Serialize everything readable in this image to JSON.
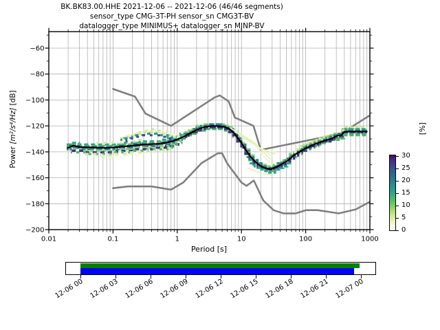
{
  "title": {
    "line1": "BK.BK83.00.HHE   2021-12-06 -- 2021-12-06  (46/46 segments)",
    "line2": "sensor_type CMG-3T-PH sensor_sn CMG3T-BV",
    "line3": "datalogger_type MINIMUS+ datalogger_sn MINP-BV"
  },
  "axis": {
    "xlabel": "Period [s]",
    "ylabel_prefix": "Power ",
    "ylabel_units": "[m²/s⁴/Hz]",
    "ylabel_suffix": " [dB]"
  },
  "colorbar": {
    "label": "[%]",
    "ticks": [
      0,
      5,
      10,
      15,
      20,
      25,
      30
    ],
    "colormap": "white-to-viridis reversed (0%=white, 30%=dark purple)"
  },
  "timeline": {
    "labels": [
      "12-06 00",
      "12-06 03",
      "12-06 06",
      "12-06 09",
      "12-06 12",
      "12-06 15",
      "12-06 18",
      "12-06 21",
      "12-07 00"
    ],
    "green_bar_color": "#008000",
    "blue_bar_color": "#0000ff"
  },
  "chart_data": {
    "type": "heatmap",
    "description": "PPSD probabilistic power spectral density, probability [%] vs period and power",
    "xscale": "log",
    "xlim": [
      0.01,
      1000
    ],
    "ylim": [
      -200,
      -47.3
    ],
    "xticks": [
      0.01,
      0.1,
      1,
      10,
      100,
      1000
    ],
    "yticks": [
      -200,
      -180,
      -160,
      -140,
      -120,
      -100,
      -80,
      -60
    ],
    "grid": true,
    "grid_color": "#b0b0b0",
    "percent_max": 30,
    "noise_models": {
      "color": "#7f7f7f",
      "nhnm": [
        [
          0.1,
          -91.5
        ],
        [
          0.22,
          -97.4
        ],
        [
          0.32,
          -110.5
        ],
        [
          0.8,
          -120
        ],
        [
          3.8,
          -98.1
        ],
        [
          4.6,
          -96.5
        ],
        [
          6.3,
          -101
        ],
        [
          7.9,
          -113.5
        ],
        [
          15.4,
          -120
        ],
        [
          20,
          -138.5
        ],
        [
          354.8,
          -126
        ],
        [
          1000,
          -111.8
        ]
      ],
      "nlnm": [
        [
          0.1,
          -168
        ],
        [
          0.17,
          -166.7
        ],
        [
          0.4,
          -166.7
        ],
        [
          0.8,
          -169.2
        ],
        [
          1.24,
          -163.7
        ],
        [
          2.4,
          -148.6
        ],
        [
          4.3,
          -141.1
        ],
        [
          5,
          -141.1
        ],
        [
          6,
          -149
        ],
        [
          10,
          -163.7
        ],
        [
          12,
          -166.2
        ],
        [
          15.6,
          -162.1
        ],
        [
          21.9,
          -177.5
        ],
        [
          31.6,
          -185
        ],
        [
          45,
          -187.5
        ],
        [
          70,
          -187.5
        ],
        [
          101,
          -185
        ],
        [
          154,
          -185
        ],
        [
          328,
          -187.5
        ],
        [
          600,
          -184.4
        ],
        [
          1000,
          -178.5
        ]
      ]
    },
    "mode_line": {
      "color": "#000000",
      "points": [
        [
          0.02,
          -137
        ],
        [
          0.024,
          -135.2
        ],
        [
          0.03,
          -136.3
        ],
        [
          0.05,
          -136.6
        ],
        [
          0.08,
          -137
        ],
        [
          0.12,
          -136.3
        ],
        [
          0.2,
          -135.3
        ],
        [
          0.3,
          -134.3
        ],
        [
          0.5,
          -133.8
        ],
        [
          0.7,
          -132.8
        ],
        [
          0.9,
          -131.3
        ],
        [
          1.2,
          -128.8
        ],
        [
          1.6,
          -125.6
        ],
        [
          2.1,
          -122.5
        ],
        [
          2.7,
          -120.7
        ],
        [
          3.5,
          -120
        ],
        [
          4.6,
          -120.2
        ],
        [
          5.5,
          -120.8
        ],
        [
          6.5,
          -122.3
        ],
        [
          7.5,
          -125
        ],
        [
          8.5,
          -128.3
        ],
        [
          10,
          -133
        ],
        [
          12,
          -139.5
        ],
        [
          14,
          -144
        ],
        [
          17,
          -148.3
        ],
        [
          20,
          -151
        ],
        [
          24,
          -152.7
        ],
        [
          29,
          -153.3
        ],
        [
          35,
          -151.7
        ],
        [
          43,
          -149.3
        ],
        [
          52,
          -147
        ],
        [
          65,
          -142.8
        ],
        [
          80,
          -140
        ],
        [
          100,
          -137.3
        ],
        [
          125,
          -135
        ],
        [
          155,
          -133.2
        ],
        [
          200,
          -131.2
        ],
        [
          250,
          -130
        ],
        [
          310,
          -127.5
        ],
        [
          360,
          -127.2
        ],
        [
          400,
          -124.5
        ],
        [
          500,
          -124.3
        ],
        [
          650,
          -124.2
        ],
        [
          900,
          -124.3
        ]
      ]
    },
    "upper_stream": [
      [
        0.13,
        -130.5
      ],
      [
        0.2,
        -127.5
      ],
      [
        0.3,
        -125.5
      ],
      [
        0.45,
        -124.8
      ],
      [
        0.6,
        -125.8
      ],
      [
        0.8,
        -127.8
      ],
      [
        1.0,
        -129.3
      ],
      [
        1.3,
        -128.8
      ]
    ],
    "cloud_layers": [
      {
        "ref": "mode",
        "off": 2.2,
        "p": [
          0.019,
          1.3
        ],
        "color": "#2e9e8a",
        "w": 3.4,
        "dash": "6 4",
        "ph": 0
      },
      {
        "ref": "mode",
        "off": 1.2,
        "p": [
          0.019,
          1.35
        ],
        "color": "#4fb36b",
        "w": 3.4,
        "dash": "8 3",
        "ph": 3
      },
      {
        "ref": "mode",
        "off": 0,
        "p": [
          0.019,
          1.4
        ],
        "color": "#3c4d8a",
        "w": 3.4,
        "dash": "7 4",
        "ph": 5
      },
      {
        "ref": "mode",
        "off": -1.2,
        "p": [
          0.019,
          1.35
        ],
        "color": "#2b818e",
        "w": 3.4,
        "dash": "9 3",
        "ph": 1
      },
      {
        "ref": "mode",
        "off": -2.3,
        "p": [
          0.02,
          1.3
        ],
        "color": "#8fd06e",
        "w": 3.4,
        "dash": "5 4",
        "ph": 2
      },
      {
        "ref": "mode",
        "off": -3.4,
        "p": [
          0.02,
          1.2
        ],
        "color": "#46327e",
        "w": 3.4,
        "dash": "6 5",
        "ph": 6
      },
      {
        "ref": "mode",
        "off": -4.5,
        "p": [
          0.022,
          1.1
        ],
        "color": "#4fb36b",
        "w": 3.4,
        "dash": "4 6",
        "ph": 2
      },
      {
        "ref": "mode",
        "off": -5.6,
        "p": [
          0.03,
          0.9
        ],
        "color": "#cfe8a0",
        "w": 3.4,
        "dash": "5 7",
        "ph": 4
      },
      {
        "ref": "mode",
        "off": -6.6,
        "p": [
          0.05,
          0.6
        ],
        "color": "#eef4cf",
        "w": 3,
        "dash": "4 8",
        "ph": 1
      },
      {
        "ref": "mode",
        "off": -7.5,
        "p": [
          0.06,
          0.4
        ],
        "color": "#eef4cf",
        "w": 2.8,
        "dash": "3 9",
        "ph": 5
      },
      {
        "ref": "mode",
        "off": 3.2,
        "p": [
          0.05,
          0.3
        ],
        "color": "#cfe8a0",
        "w": 3,
        "dash": "4 7",
        "ph": 7
      },
      {
        "ref": "upper",
        "off": 0,
        "p": [
          0.13,
          1.3
        ],
        "color": "#cfe8a0",
        "w": 3.4,
        "dash": "7 3",
        "ph": 0
      },
      {
        "ref": "upper",
        "off": 1.1,
        "p": [
          0.15,
          1.1
        ],
        "color": "#eef4cf",
        "w": 3,
        "dash": "5 6",
        "ph": 4
      },
      {
        "ref": "upper",
        "off": -1.1,
        "p": [
          0.13,
          1.25
        ],
        "color": "#2e9e8a",
        "w": 3.2,
        "dash": "5 5",
        "ph": 2
      },
      {
        "ref": "upper",
        "off": -2.2,
        "p": [
          0.14,
          1.2
        ],
        "color": "#3c4d8a",
        "w": 3,
        "dash": "4 7",
        "ph": 6
      },
      {
        "ref": "upper",
        "off": 2.2,
        "p": [
          0.2,
          0.8
        ],
        "color": "#cfe8a0",
        "w": 3,
        "dash": "3 9",
        "ph": 3
      },
      {
        "ref": "mode",
        "off": 1.8,
        "p": [
          1.3,
          900
        ],
        "color": "#8fd06e",
        "w": 3.2,
        "dash": "6 2",
        "ph": 0
      },
      {
        "ref": "mode",
        "off": -1.8,
        "p": [
          1.3,
          900
        ],
        "color": "#4fb36b",
        "w": 3.2,
        "dash": "7 2",
        "ph": 3
      },
      {
        "ref": "mode",
        "off": 0.9,
        "p": [
          1.3,
          900
        ],
        "color": "#2b818e",
        "w": 3,
        "dash": "8 2",
        "ph": 1
      },
      {
        "ref": "mode",
        "off": -0.9,
        "p": [
          1.3,
          900
        ],
        "color": "#46327e",
        "w": 3,
        "dash": "9 2",
        "ph": 5
      },
      {
        "ref": "mode",
        "off": -2.8,
        "p": [
          12,
          60
        ],
        "color": "#2e9e8a",
        "w": 3.2,
        "dash": "5 3",
        "ph": 2
      },
      {
        "ref": "mode",
        "off": 2.8,
        "p": [
          60,
          200
        ],
        "color": "#cfe8a0",
        "w": 3,
        "dash": "4 4",
        "ph": 4
      },
      {
        "ref": "mode",
        "off": -2.8,
        "p": [
          300,
          900
        ],
        "color": "#4fb36b",
        "w": 3.2,
        "dash": "6 3",
        "ph": 1
      },
      {
        "ref": "mode",
        "off": 2.8,
        "p": [
          350,
          900
        ],
        "color": "#cfe8a0",
        "w": 3.2,
        "dash": "5 3",
        "ph": 6
      },
      {
        "ref": "mode",
        "off": 2,
        "p": [
          400,
          900
        ],
        "color": "#2e9e8a",
        "w": 3,
        "dash": "6 3",
        "ph": 2
      }
    ],
    "streaks": [
      {
        "color": "#eef4cf",
        "w": 1.8,
        "points": [
          [
            6.6,
            -121.5
          ],
          [
            14,
            -131
          ],
          [
            25,
            -146
          ],
          [
            30,
            -149.5
          ]
        ]
      },
      {
        "color": "#e2efb9",
        "w": 1.8,
        "points": [
          [
            7.2,
            -122.5
          ],
          [
            16,
            -133
          ],
          [
            28,
            -145.5
          ]
        ]
      },
      {
        "color": "#eef4cf",
        "w": 1.8,
        "points": [
          [
            8,
            -124.5
          ],
          [
            18,
            -136
          ],
          [
            30,
            -143.5
          ]
        ]
      },
      {
        "color": "#dcecae",
        "w": 1.8,
        "points": [
          [
            9,
            -126.5
          ],
          [
            20,
            -137.5
          ],
          [
            33,
            -141.5
          ]
        ]
      },
      {
        "color": "#eef4cf",
        "w": 1.5,
        "points": [
          [
            10,
            -129
          ],
          [
            22,
            -138.5
          ],
          [
            35,
            -140.5
          ]
        ]
      },
      {
        "color": "#e2efb9",
        "w": 1.8,
        "points": [
          [
            12.5,
            -152.5
          ],
          [
            20,
            -156.5
          ],
          [
            29,
            -157.8
          ]
        ]
      }
    ]
  }
}
